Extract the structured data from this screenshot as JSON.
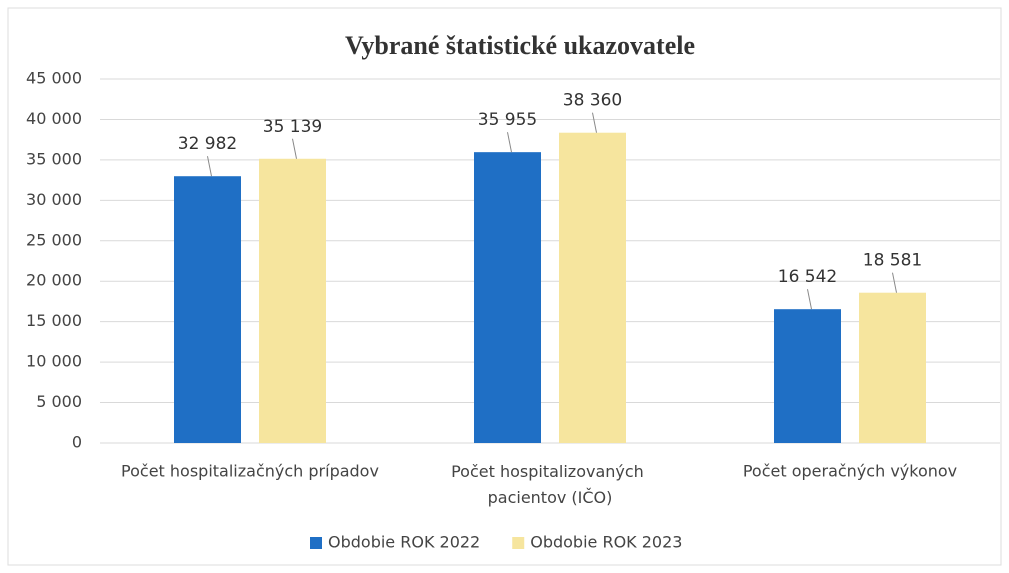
{
  "chart_data": {
    "type": "bar",
    "title": "Vybrané štatistické ukazovatele",
    "categories": [
      "Počet hospitalizačných prípadov",
      "Počet hospitalizovaných pacientov (IČO)",
      "Počet operačných výkonov"
    ],
    "series": [
      {
        "name": "Obdobie ROK 2022",
        "color": "#1f6fc5",
        "values": [
          32982,
          35955,
          16542
        ],
        "value_labels": [
          "32 982",
          "35 955",
          "16 542"
        ]
      },
      {
        "name": "Obdobie ROK 2023",
        "color": "#f6e59e",
        "values": [
          35139,
          38360,
          18581
        ],
        "value_labels": [
          "35 139",
          "38 360",
          "18 581"
        ]
      }
    ],
    "ylim": [
      0,
      45000
    ],
    "yticks": [
      0,
      {
        "value": 5000,
        "label": "5 000"
      },
      {
        "value": 10000,
        "label": "10 000"
      },
      {
        "value": 15000,
        "label": "15 000"
      },
      {
        "value": 20000,
        "label": "20 000"
      },
      {
        "value": 25000,
        "label": "25 000"
      },
      {
        "value": 30000,
        "label": "30 000"
      },
      {
        "value": 35000,
        "label": "35 000"
      },
      {
        "value": 40000,
        "label": "40 000"
      },
      {
        "value": 45000,
        "label": "45 000"
      }
    ],
    "grid": true,
    "legend": "bottom"
  }
}
